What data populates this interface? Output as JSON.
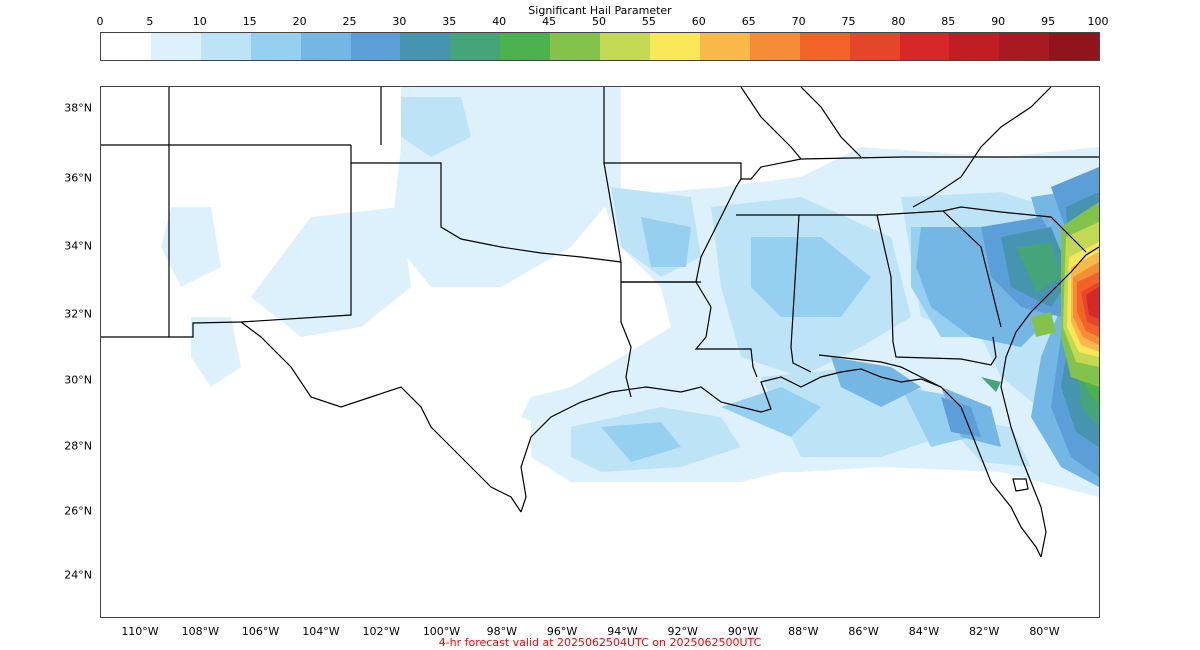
{
  "colorbar": {
    "title": "Significant Hail Parameter",
    "ticks": [
      "0",
      "5",
      "10",
      "15",
      "20",
      "25",
      "30",
      "35",
      "40",
      "45",
      "50",
      "55",
      "60",
      "65",
      "70",
      "75",
      "80",
      "85",
      "90",
      "95",
      "100"
    ],
    "colors": [
      "#ffffff",
      "#ddf1fc",
      "#bde4f6",
      "#96d0f1",
      "#74b6e4",
      "#5c9fd8",
      "#4694b0",
      "#46a47a",
      "#4bb24d",
      "#83c24b",
      "#c3d954",
      "#f9e75a",
      "#f8b84a",
      "#f58d38",
      "#f16328",
      "#e54629",
      "#d72729",
      "#c21d25",
      "#a81a22",
      "#8f141b"
    ]
  },
  "map": {
    "lat_labels": [
      "38°N",
      "36°N",
      "34°N",
      "32°N",
      "30°N",
      "28°N",
      "26°N",
      "24°N"
    ],
    "lon_labels": [
      "110°W",
      "108°W",
      "106°W",
      "104°W",
      "102°W",
      "100°W",
      "98°W",
      "96°W",
      "94°W",
      "92°W",
      "90°W",
      "88°W",
      "86°W",
      "84°W",
      "82°W",
      "80°W"
    ]
  },
  "footer": "4-hr forecast valid at 2025062504UTC on 2025062500UTC"
}
